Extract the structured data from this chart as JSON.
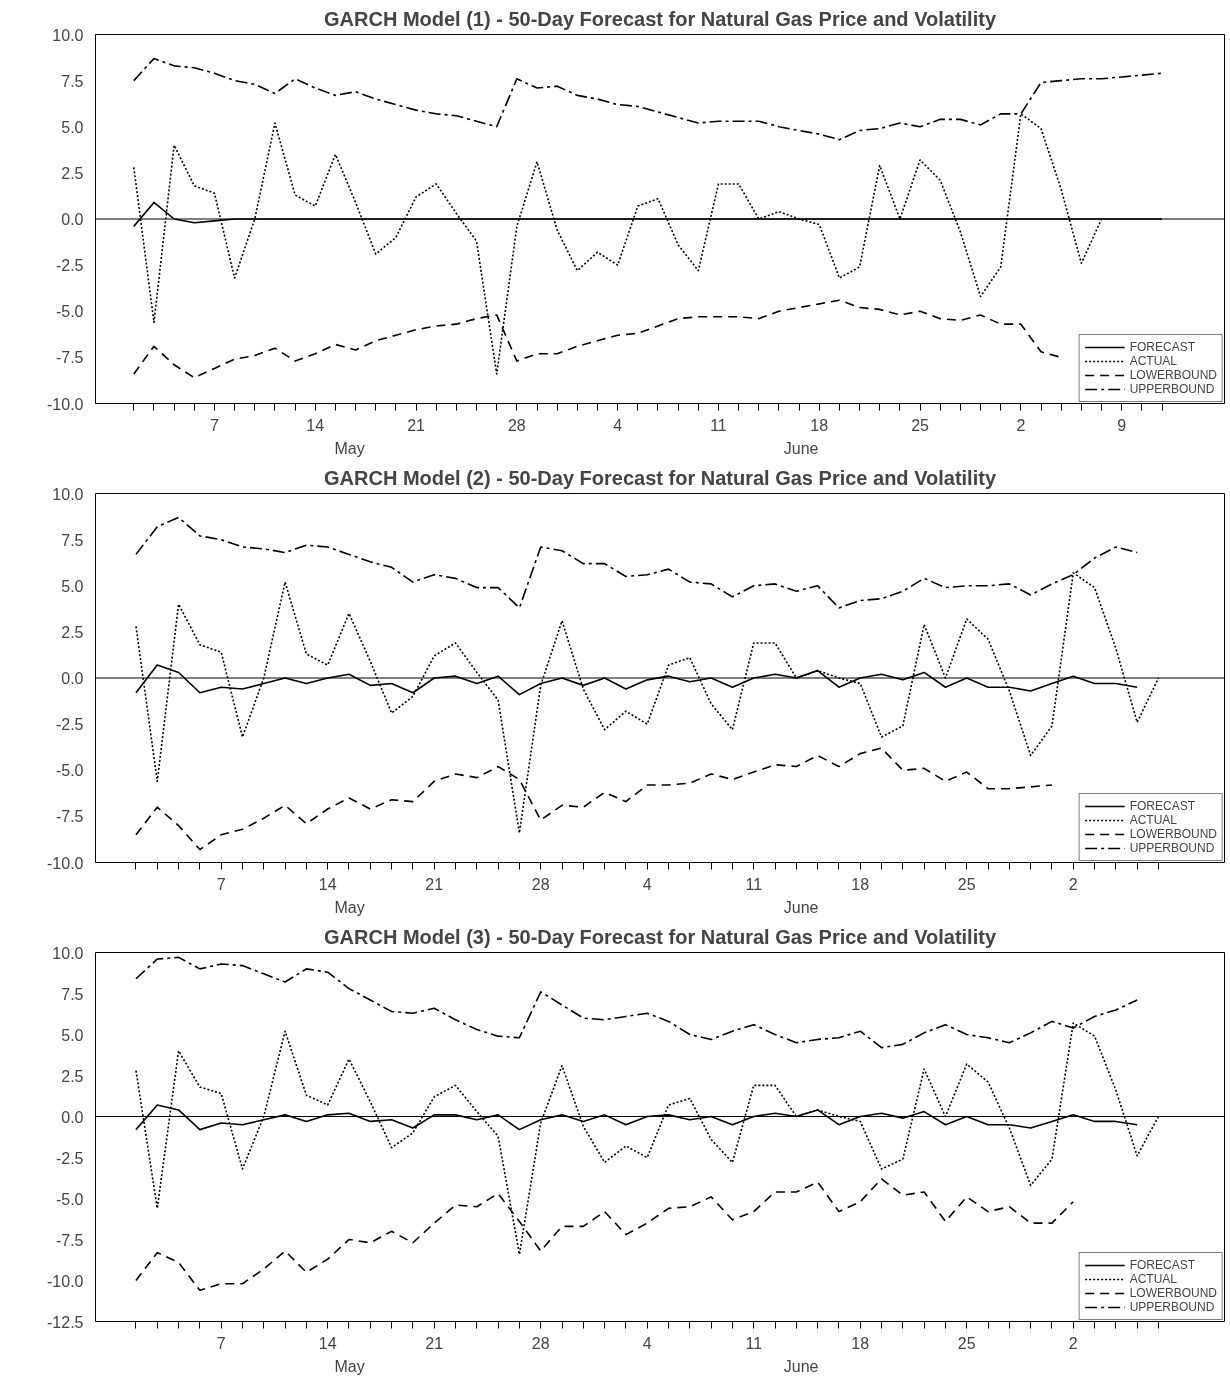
{
  "chart_data": [
    {
      "type": "line",
      "title": "GARCH Model (1) - 50-Day Forecast for Natural Gas Price and Volatility",
      "categories": [
        null,
        null,
        null,
        null,
        "7",
        null,
        null,
        null,
        null,
        "14",
        null,
        null,
        null,
        null,
        "21",
        null,
        null,
        null,
        null,
        "28",
        null,
        null,
        null,
        null,
        "4",
        null,
        null,
        null,
        null,
        "11",
        null,
        null,
        null,
        null,
        "18",
        null,
        null,
        null,
        null,
        "25",
        null,
        null,
        null,
        null,
        "2",
        null,
        null,
        null,
        null,
        "9",
        null,
        null
      ],
      "ylim": [
        -10,
        10
      ],
      "yticks": [
        {
          "value": -10,
          "label": "-10.0"
        },
        {
          "value": -7.5,
          "label": "-7.5"
        },
        {
          "value": -5,
          "label": "-5.0"
        },
        {
          "value": -2.5,
          "label": "-2.5"
        },
        {
          "value": 0,
          "label": "0.0"
        },
        {
          "value": 2.5,
          "label": "2.5"
        },
        {
          "value": 5,
          "label": "5.0"
        },
        {
          "value": 7.5,
          "label": "7.5"
        },
        {
          "value": 10,
          "label": "10.0"
        }
      ],
      "grid": false,
      "legend": "bottom right",
      "ref_lines": [
        {
          "axis": "y",
          "value": 0,
          "color": "#000000"
        }
      ],
      "annotations": [
        "May",
        "June"
      ],
      "series": [
        {
          "name": "FORECAST",
          "color": "#000000",
          "line_style": "solid",
          "values": [
            -0.4,
            0.9,
            0.0,
            -0.2,
            -0.1,
            0.0,
            0.0,
            0.0,
            0.0,
            0.0,
            0.0,
            0.0,
            0.0,
            0.0,
            0.0,
            0.0,
            0.0,
            0.0,
            0.0,
            0.0,
            0.0,
            0.0,
            0.0,
            0.0,
            0.0,
            0.0,
            0.0,
            0.0,
            0.0,
            0.0,
            0.0,
            0.0,
            0.0,
            0.0,
            0.0,
            0.0,
            0.0,
            0.0,
            0.0,
            0.0,
            0.0,
            0.0,
            0.0,
            0.0,
            0.0,
            0.0,
            0.0,
            0.0,
            0.0,
            0.0,
            0.0,
            0.0
          ]
        },
        {
          "name": "ACTUAL",
          "color": "#000000",
          "line_style": "dotted",
          "values": [
            2.8,
            -5.6,
            4.0,
            1.8,
            1.4,
            -3.2,
            0.0,
            5.2,
            1.3,
            0.7,
            3.5,
            0.9,
            -1.9,
            -1.0,
            1.2,
            1.9,
            0.3,
            -1.2,
            -8.4,
            -0.4,
            3.1,
            -0.6,
            -2.8,
            -1.8,
            -2.5,
            0.7,
            1.1,
            -1.4,
            -2.8,
            1.9,
            1.9,
            0.0,
            0.4,
            0.0,
            -0.3,
            -3.2,
            -2.6,
            2.9,
            0.0,
            3.2,
            2.1,
            -0.7,
            -4.2,
            -2.6,
            5.7,
            4.9,
            1.6,
            -2.4,
            0.0,
            null,
            null,
            null
          ]
        },
        {
          "name": "LOWERBOUND",
          "color": "#000000",
          "line_style": "dashed",
          "values": [
            -8.4,
            -6.9,
            -7.9,
            -8.6,
            -8.1,
            -7.6,
            -7.4,
            -7.0,
            -7.7,
            -7.3,
            -6.8,
            -7.1,
            -6.6,
            -6.3,
            -6.0,
            -5.8,
            -5.7,
            -5.4,
            -5.2,
            -7.7,
            -7.3,
            -7.3,
            -6.9,
            -6.6,
            -6.3,
            -6.2,
            -5.8,
            -5.4,
            -5.3,
            -5.3,
            -5.3,
            -5.4,
            -5.0,
            -4.8,
            -4.6,
            -4.4,
            -4.8,
            -4.9,
            -5.2,
            -5.0,
            -5.4,
            -5.5,
            -5.2,
            -5.7,
            -5.7,
            -7.2,
            -7.5,
            null,
            null,
            null,
            null,
            null
          ]
        },
        {
          "name": "UPPERBOUND",
          "color": "#000000",
          "line_style": "dashdot",
          "values": [
            7.5,
            8.7,
            8.3,
            8.2,
            7.9,
            7.5,
            7.3,
            6.8,
            7.6,
            7.1,
            6.7,
            6.9,
            6.5,
            6.2,
            5.9,
            5.7,
            5.6,
            5.3,
            5.0,
            7.6,
            7.1,
            7.2,
            6.7,
            6.5,
            6.2,
            6.1,
            5.8,
            5.5,
            5.2,
            5.3,
            5.3,
            5.3,
            5.0,
            4.8,
            4.6,
            4.3,
            4.8,
            4.9,
            5.2,
            5.0,
            5.4,
            5.4,
            5.1,
            5.7,
            5.7,
            7.4,
            7.5,
            7.6,
            7.6,
            7.7,
            7.8,
            7.9
          ]
        }
      ]
    },
    {
      "type": "line",
      "title": "GARCH Model (2) - 50-Day Forecast for Natural Gas Price and Volatility",
      "categories": [
        null,
        null,
        null,
        null,
        "7",
        null,
        null,
        null,
        null,
        "14",
        null,
        null,
        null,
        null,
        "21",
        null,
        null,
        null,
        null,
        "28",
        null,
        null,
        null,
        null,
        "4",
        null,
        null,
        null,
        null,
        "11",
        null,
        null,
        null,
        null,
        "18",
        null,
        null,
        null,
        null,
        "25",
        null,
        null,
        null,
        null,
        "2",
        null,
        null,
        null,
        null
      ],
      "ylim": [
        -10,
        10
      ],
      "yticks": [
        {
          "value": -10,
          "label": "-10.0"
        },
        {
          "value": -7.5,
          "label": "-7.5"
        },
        {
          "value": -5,
          "label": "-5.0"
        },
        {
          "value": -2.5,
          "label": "-2.5"
        },
        {
          "value": 0,
          "label": "0.0"
        },
        {
          "value": 2.5,
          "label": "2.5"
        },
        {
          "value": 5,
          "label": "5.0"
        },
        {
          "value": 7.5,
          "label": "7.5"
        },
        {
          "value": 10,
          "label": "10.0"
        }
      ],
      "grid": false,
      "legend": "bottom right",
      "ref_lines": [
        {
          "axis": "y",
          "value": 0,
          "color": "#000000"
        }
      ],
      "annotations": [
        "May",
        "June"
      ],
      "series": [
        {
          "name": "FORECAST",
          "color": "#000000",
          "line_style": "solid",
          "values": [
            -0.8,
            0.7,
            0.3,
            -0.8,
            -0.5,
            -0.6,
            -0.3,
            0.0,
            -0.3,
            0.0,
            0.2,
            -0.4,
            -0.3,
            -0.8,
            0.0,
            0.1,
            -0.3,
            0.1,
            -0.9,
            -0.3,
            0.0,
            -0.4,
            0.0,
            -0.6,
            -0.1,
            0.1,
            -0.2,
            0.0,
            -0.5,
            0.0,
            0.2,
            0.0,
            0.4,
            -0.5,
            0.0,
            0.2,
            -0.1,
            0.3,
            -0.5,
            0.0,
            -0.5,
            -0.5,
            -0.7,
            -0.3,
            0.1,
            -0.3,
            -0.3,
            -0.5,
            null
          ]
        },
        {
          "name": "ACTUAL",
          "color": "#000000",
          "line_style": "dotted",
          "values": [
            2.8,
            -5.6,
            4.0,
            1.8,
            1.4,
            -3.2,
            0.0,
            5.2,
            1.3,
            0.7,
            3.5,
            0.9,
            -1.9,
            -1.0,
            1.2,
            1.9,
            0.3,
            -1.2,
            -8.4,
            -0.4,
            3.1,
            -0.6,
            -2.8,
            -1.8,
            -2.5,
            0.7,
            1.1,
            -1.4,
            -2.8,
            1.9,
            1.9,
            0.0,
            0.4,
            0.0,
            -0.3,
            -3.2,
            -2.6,
            2.9,
            0.0,
            3.2,
            2.1,
            -0.7,
            -4.2,
            -2.6,
            5.7,
            4.9,
            1.6,
            -2.4,
            0.0
          ]
        },
        {
          "name": "LOWERBOUND",
          "color": "#000000",
          "line_style": "dashed",
          "values": [
            -8.5,
            -7.0,
            -8.0,
            -9.3,
            -8.5,
            -8.2,
            -7.6,
            -6.9,
            -7.9,
            -7.1,
            -6.5,
            -7.1,
            -6.6,
            -6.7,
            -5.6,
            -5.2,
            -5.4,
            -4.8,
            -5.5,
            -7.7,
            -6.9,
            -7.0,
            -6.2,
            -6.7,
            -5.8,
            -5.8,
            -5.7,
            -5.2,
            -5.5,
            -5.1,
            -4.7,
            -4.8,
            -4.2,
            -4.8,
            -4.1,
            -3.8,
            -5.0,
            -4.9,
            -5.6,
            -5.1,
            -6.0,
            -6.0,
            -5.9,
            -5.8,
            null,
            null,
            null,
            null,
            null
          ]
        },
        {
          "name": "UPPERBOUND",
          "color": "#000000",
          "line_style": "dashdot",
          "values": [
            6.7,
            8.2,
            8.7,
            7.7,
            7.5,
            7.1,
            7.0,
            6.8,
            7.2,
            7.1,
            6.7,
            6.3,
            6.0,
            5.2,
            5.6,
            5.4,
            4.9,
            4.9,
            3.8,
            7.1,
            6.9,
            6.2,
            6.2,
            5.5,
            5.6,
            5.9,
            5.2,
            5.1,
            4.4,
            5.0,
            5.1,
            4.7,
            5.0,
            3.8,
            4.2,
            4.3,
            4.7,
            5.4,
            4.9,
            5.0,
            5.0,
            5.1,
            4.5,
            5.1,
            5.6,
            6.5,
            7.1,
            6.8,
            null
          ]
        }
      ]
    },
    {
      "type": "line",
      "title": "GARCH Model (3) - 50-Day Forecast for Natural Gas Price and Volatility",
      "categories": [
        null,
        null,
        null,
        null,
        "7",
        null,
        null,
        null,
        null,
        "14",
        null,
        null,
        null,
        null,
        "21",
        null,
        null,
        null,
        null,
        "28",
        null,
        null,
        null,
        null,
        "4",
        null,
        null,
        null,
        null,
        "11",
        null,
        null,
        null,
        null,
        "18",
        null,
        null,
        null,
        null,
        "25",
        null,
        null,
        null,
        null,
        "2",
        null,
        null,
        null,
        null
      ],
      "ylim": [
        -12.5,
        10
      ],
      "yticks": [
        {
          "value": -12.5,
          "label": "-12.5"
        },
        {
          "value": -10,
          "label": "-10.0"
        },
        {
          "value": -7.5,
          "label": "-7.5"
        },
        {
          "value": -5,
          "label": "-5.0"
        },
        {
          "value": -2.5,
          "label": "-2.5"
        },
        {
          "value": 0,
          "label": "0.0"
        },
        {
          "value": 2.5,
          "label": "2.5"
        },
        {
          "value": 5,
          "label": "5.0"
        },
        {
          "value": 7.5,
          "label": "7.5"
        },
        {
          "value": 10,
          "label": "10.0"
        }
      ],
      "grid": false,
      "legend": "bottom right",
      "ref_lines": [
        {
          "axis": "y",
          "value": 0,
          "color": "#000000"
        }
      ],
      "annotations": [
        "May",
        "June"
      ],
      "series": [
        {
          "name": "FORECAST",
          "color": "#000000",
          "line_style": "solid",
          "values": [
            -0.8,
            0.7,
            0.4,
            -0.8,
            -0.4,
            -0.5,
            -0.2,
            0.1,
            -0.3,
            0.1,
            0.2,
            -0.3,
            -0.2,
            -0.7,
            0.1,
            0.1,
            -0.2,
            0.1,
            -0.8,
            -0.2,
            0.1,
            -0.3,
            0.1,
            -0.5,
            0.0,
            0.1,
            -0.2,
            0.0,
            -0.5,
            0.0,
            0.2,
            0.0,
            0.4,
            -0.5,
            0.0,
            0.2,
            -0.1,
            0.3,
            -0.5,
            0.0,
            -0.5,
            -0.5,
            -0.7,
            -0.3,
            0.1,
            -0.3,
            -0.3,
            -0.5,
            null
          ]
        },
        {
          "name": "ACTUAL",
          "color": "#000000",
          "line_style": "dotted",
          "values": [
            2.8,
            -5.6,
            4.0,
            1.8,
            1.4,
            -3.2,
            0.0,
            5.2,
            1.3,
            0.7,
            3.5,
            0.9,
            -1.9,
            -1.0,
            1.2,
            1.9,
            0.3,
            -1.2,
            -8.4,
            -0.4,
            3.1,
            -0.6,
            -2.8,
            -1.8,
            -2.5,
            0.7,
            1.1,
            -1.4,
            -2.8,
            1.9,
            1.9,
            0.0,
            0.4,
            0.0,
            -0.3,
            -3.2,
            -2.6,
            2.9,
            0.0,
            3.2,
            2.1,
            -0.7,
            -4.2,
            -2.6,
            5.7,
            4.9,
            1.6,
            -2.4,
            0.0
          ]
        },
        {
          "name": "LOWERBOUND",
          "color": "#000000",
          "line_style": "dashed",
          "values": [
            -10.0,
            -8.3,
            -8.9,
            -10.6,
            -10.2,
            -10.2,
            -9.3,
            -8.2,
            -9.5,
            -8.7,
            -7.5,
            -7.7,
            -7.0,
            -7.7,
            -6.5,
            -5.4,
            -5.5,
            -4.7,
            -6.4,
            -8.2,
            -6.7,
            -6.7,
            -5.8,
            -7.2,
            -6.5,
            -5.6,
            -5.5,
            -4.9,
            -6.3,
            -5.8,
            -4.6,
            -4.6,
            -4.0,
            -5.8,
            -5.2,
            -3.8,
            -4.8,
            -4.6,
            -6.4,
            -4.9,
            -5.8,
            -5.5,
            -6.5,
            -6.5,
            -5.2,
            null,
            null,
            null,
            null
          ]
        },
        {
          "name": "UPPERBOUND",
          "color": "#000000",
          "line_style": "dashdot",
          "values": [
            8.4,
            9.6,
            9.7,
            9.0,
            9.3,
            9.2,
            8.7,
            8.2,
            9.0,
            8.8,
            7.8,
            7.1,
            6.4,
            6.3,
            6.6,
            5.9,
            5.3,
            4.9,
            4.8,
            7.6,
            6.8,
            6.0,
            5.9,
            6.1,
            6.3,
            5.8,
            5.0,
            4.7,
            5.2,
            5.6,
            5.0,
            4.5,
            4.7,
            4.8,
            5.2,
            4.2,
            4.4,
            5.1,
            5.6,
            5.0,
            4.8,
            4.5,
            5.1,
            5.8,
            5.4,
            6.1,
            6.5,
            7.1,
            null
          ]
        }
      ]
    }
  ]
}
